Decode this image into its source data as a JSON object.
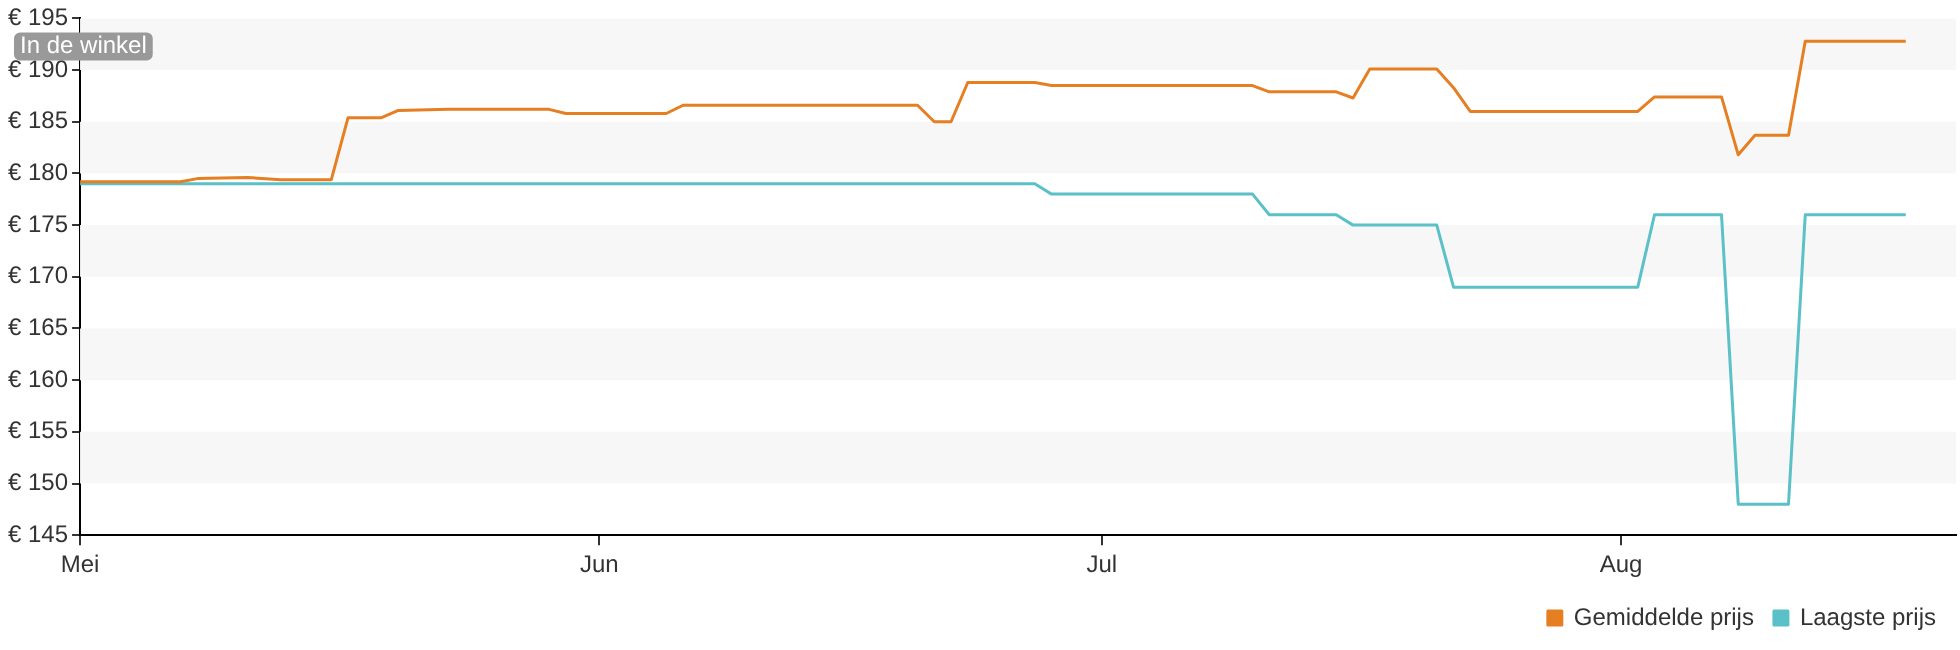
{
  "chart_data": {
    "type": "line",
    "annotations": [
      "In de winkel"
    ],
    "xlim": [
      "--05-01",
      "--08-21"
    ],
    "xticks": [
      {
        "value": "--05-01",
        "label": "Mei"
      },
      {
        "value": "--06-01",
        "label": "Jun"
      },
      {
        "value": "--07-01",
        "label": "Jul"
      },
      {
        "value": "--08-01",
        "label": "Aug"
      }
    ],
    "ylim": [
      145,
      195
    ],
    "yticks": [
      {
        "value": 145,
        "label": "€ 145"
      },
      {
        "value": 150,
        "label": "€ 150"
      },
      {
        "value": 155,
        "label": "€ 155"
      },
      {
        "value": 160,
        "label": "€ 160"
      },
      {
        "value": 165,
        "label": "€ 165"
      },
      {
        "value": 170,
        "label": "€ 170"
      },
      {
        "value": 175,
        "label": "€ 175"
      },
      {
        "value": 180,
        "label": "€ 180"
      },
      {
        "value": 185,
        "label": "€ 185"
      },
      {
        "value": 190,
        "label": "€ 190"
      },
      {
        "value": 195,
        "label": "€ 195"
      }
    ],
    "legend": "bottom right",
    "marker": "none",
    "line_style": "solid",
    "series": [
      {
        "name": "Gemiddelde prijs",
        "color": "#e67e22",
        "x": [
          "--05-01",
          "--05-07",
          "--05-08",
          "--05-11",
          "--05-13",
          "--05-16",
          "--05-17",
          "--05-19",
          "--05-20",
          "--05-23",
          "--05-29",
          "--05-30",
          "--06-05",
          "--06-06",
          "--06-20",
          "--06-21",
          "--06-22",
          "--06-23",
          "--06-27",
          "--06-28",
          "--07-10",
          "--07-11",
          "--07-15",
          "--07-16",
          "--07-17",
          "--07-21",
          "--07-22",
          "--07-23",
          "--08-02",
          "--08-03",
          "--08-07",
          "--08-08",
          "--08-09",
          "--08-11",
          "--08-12",
          "--08-18"
        ],
        "values": [
          179.2,
          179.2,
          179.5,
          179.6,
          179.4,
          179.4,
          185.4,
          185.4,
          186.1,
          186.2,
          186.2,
          185.8,
          185.8,
          186.6,
          186.6,
          185.0,
          185.0,
          188.8,
          188.8,
          188.5,
          188.5,
          187.9,
          187.9,
          187.3,
          190.1,
          190.1,
          188.3,
          186.0,
          186.0,
          187.4,
          187.4,
          181.8,
          183.7,
          183.7,
          192.8,
          192.8
        ]
      },
      {
        "name": "Laagste prijs",
        "color": "#5bc0c8",
        "x": [
          "--05-01",
          "--06-27",
          "--06-28",
          "--07-10",
          "--07-11",
          "--07-15",
          "--07-16",
          "--07-21",
          "--07-22",
          "--08-02",
          "--08-03",
          "--08-07",
          "--08-08",
          "--08-11",
          "--08-12",
          "--08-18"
        ],
        "values": [
          179.0,
          179.0,
          178.0,
          178.0,
          176.0,
          176.0,
          175.0,
          175.0,
          169.0,
          169.0,
          176.0,
          176.0,
          148.0,
          148.0,
          176.0,
          176.0
        ]
      }
    ]
  }
}
